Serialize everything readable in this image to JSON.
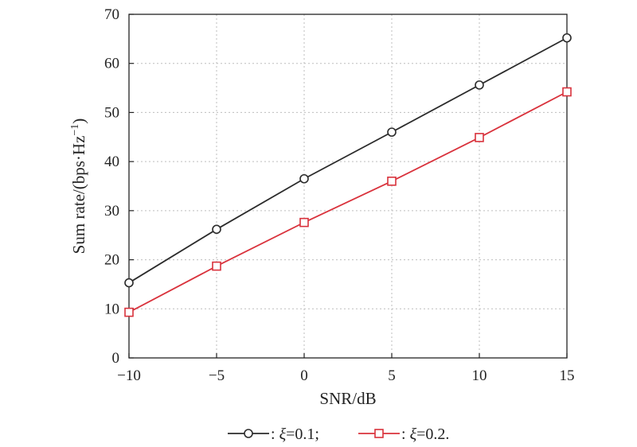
{
  "chart_data": {
    "type": "line",
    "xlabel": "SNR/dB",
    "ylabel": "Sum rate/(bps·Hz",
    "ylabel_sup": "−1",
    "ylabel_close": ")",
    "xlim": [
      -10,
      15
    ],
    "ylim": [
      0,
      70
    ],
    "x": [
      -10,
      -5,
      0,
      5,
      10,
      15
    ],
    "x_tick_labels": [
      "−10",
      "−5",
      "0",
      "5",
      "10",
      "15"
    ],
    "y_ticks": [
      0,
      10,
      20,
      30,
      40,
      50,
      60,
      70
    ],
    "y_tick_labels": [
      "0",
      "10",
      "20",
      "30",
      "40",
      "50",
      "60",
      "70"
    ],
    "grid": true,
    "legend_position": "bottom-center",
    "series": [
      {
        "name": "ξ=0.1",
        "legend_prefix": ": ",
        "legend_symbol": "ξ",
        "legend_value": "=0.1;",
        "values": [
          15.3,
          26.2,
          36.5,
          46.0,
          55.6,
          65.2
        ],
        "color": "#2b2b2b",
        "marker": "circle"
      },
      {
        "name": "ξ=0.2",
        "legend_prefix": ": ",
        "legend_symbol": "ξ",
        "legend_value": "=0.2.",
        "values": [
          9.3,
          18.7,
          27.6,
          36.0,
          44.9,
          54.2
        ],
        "color": "#d9323c",
        "marker": "square"
      }
    ]
  }
}
